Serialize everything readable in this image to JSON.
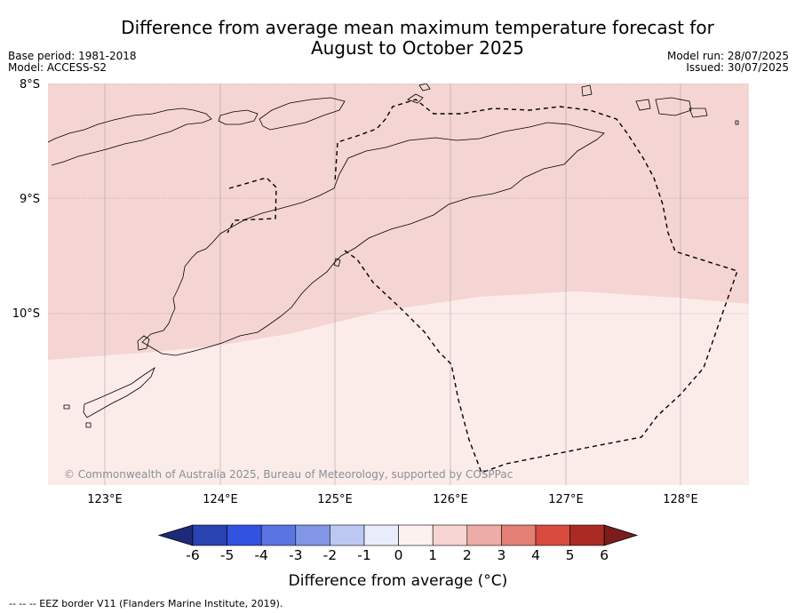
{
  "title_line1": "Difference from average mean maximum temperature forecast for",
  "title_line2": "August to October 2025",
  "meta": {
    "base_period": "Base period: 1981-2018",
    "model": "Model: ACCESS-S2",
    "model_run": "Model run: 28/07/2025",
    "issued": "Issued: 30/07/2025"
  },
  "map": {
    "lat_labels": [
      "8°S",
      "9°S",
      "10°S"
    ],
    "lon_labels": [
      "123°E",
      "124°E",
      "125°E",
      "126°E",
      "127°E",
      "128°E"
    ],
    "copyright": "© Commonwealth of Australia 2025, Bureau of Meteorology, supported by COSPPac",
    "shading": [
      {
        "range": "1 to 2",
        "color": "#f5d5d3"
      },
      {
        "range": "0 to 1",
        "color": "#fbecea"
      }
    ]
  },
  "colorbar": {
    "ticks": [
      "-6",
      "-5",
      "-4",
      "-3",
      "-2",
      "-1",
      "0",
      "1",
      "2",
      "3",
      "4",
      "5",
      "6"
    ],
    "colors": [
      "#1d2a7a",
      "#2a43b3",
      "#3252e0",
      "#5b74e3",
      "#8197e6",
      "#bdc8f2",
      "#e9ecfa",
      "#fdf1ef",
      "#f6d4d1",
      "#eeaca6",
      "#e47f75",
      "#d94a3f",
      "#aa2a24",
      "#7d1c1c"
    ],
    "label": "Difference from average (°C)"
  },
  "footnote": "--  --  -- EEZ border V11 (Flanders Marine Institute, 2019)."
}
